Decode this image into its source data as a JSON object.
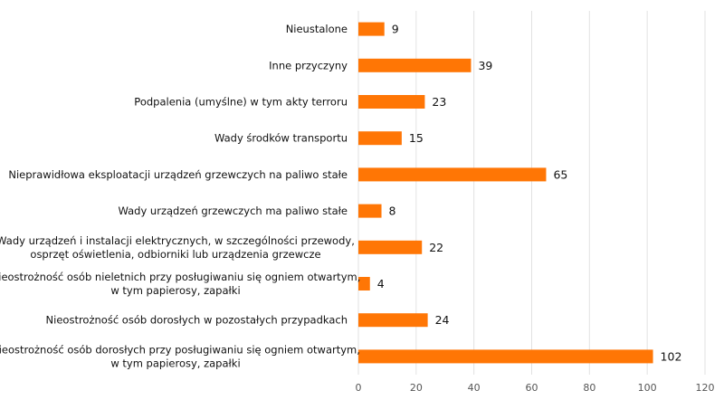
{
  "chart_data": {
    "type": "bar",
    "orientation": "horizontal",
    "categories": [
      [
        "Nieustalone"
      ],
      [
        "Inne przyczyny"
      ],
      [
        "Podpalenia (umyślne) w tym akty terroru"
      ],
      [
        "Wady środków transportu"
      ],
      [
        "Nieprawidłowa eksploatacji urządzeń grzewczych na paliwo stałe"
      ],
      [
        "Wady urządzeń grzewczych ma paliwo stałe"
      ],
      [
        "Wady urządzeń i instalacji elektrycznych, w szczególności przewody,",
        "osprzęt oświetlenia, odbiorniki lub urządzenia grzewcze"
      ],
      [
        "Nieostrożność osób nieletnich przy posługiwaniu się ogniem otwartym,",
        "w tym papierosy, zapałki"
      ],
      [
        "Nieostrożność osób dorosłych w pozostałych przypadkach"
      ],
      [
        "Nieostrożność osób dorosłych przy posługiwaniu się ogniem otwartym,",
        "w tym papierosy, zapałki"
      ]
    ],
    "values": [
      9,
      39,
      23,
      15,
      65,
      8,
      22,
      4,
      24,
      102
    ],
    "data_labels": [
      "9",
      "39",
      "23",
      "15",
      "65",
      "8",
      "22",
      "4",
      "24",
      "102"
    ],
    "xlim": [
      0,
      120
    ],
    "xticks": [
      "0",
      "20",
      "40",
      "60",
      "80",
      "100",
      "120"
    ],
    "grid": true,
    "legend": "none",
    "bar_color": "#ff7605"
  }
}
